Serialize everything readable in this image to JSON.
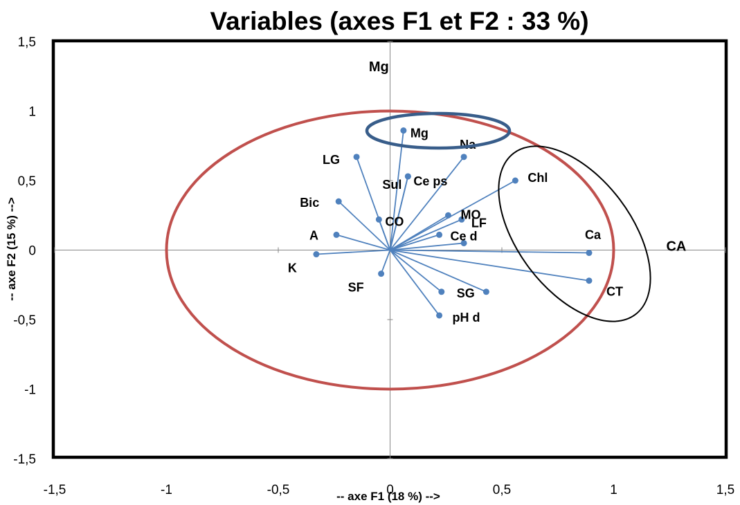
{
  "chart_data": {
    "type": "scatter",
    "title": "Variables (axes F1 et F2 : 33 %)",
    "xlabel": "-- axe F1 (18 %) -->",
    "ylabel": "-- axe F2 (15 %) -->",
    "xlim": [
      -1.5,
      1.5
    ],
    "ylim": [
      -1.5,
      1.5
    ],
    "x_ticks": [
      "-1,5",
      "-1",
      "-0,5",
      "0",
      "0,5",
      "1",
      "1,5"
    ],
    "y_ticks": [
      "-1,5",
      "-1",
      "-0,5",
      "0",
      "0,5",
      "1",
      "1,5"
    ],
    "x_tick_values": [
      -1.5,
      -1,
      -0.5,
      0,
      0.5,
      1,
      1.5
    ],
    "y_tick_values": [
      -1.5,
      -1,
      -0.5,
      0,
      0.5,
      1,
      1.5
    ],
    "correlation_circle_radius": 1,
    "points": [
      {
        "label": "Mg",
        "x": 0.06,
        "y": 0.86
      },
      {
        "label": "Na",
        "x": 0.33,
        "y": 0.67
      },
      {
        "label": "LG",
        "x": -0.15,
        "y": 0.67
      },
      {
        "label": "Sul",
        "x": 0.08,
        "y": 0.53
      },
      {
        "label": "Ce ps",
        "x": 0.08,
        "y": 0.53
      },
      {
        "label": "Chl",
        "x": 0.56,
        "y": 0.5
      },
      {
        "label": "Bic",
        "x": -0.23,
        "y": 0.35
      },
      {
        "label": "MO",
        "x": 0.26,
        "y": 0.25
      },
      {
        "label": "LF",
        "x": 0.32,
        "y": 0.22
      },
      {
        "label": "CO",
        "x": -0.05,
        "y": 0.22
      },
      {
        "label": "Ce d",
        "x": 0.22,
        "y": 0.11
      },
      {
        "label": "A",
        "x": -0.24,
        "y": 0.11
      },
      {
        "label": "Ca",
        "x": 0.89,
        "y": -0.02
      },
      {
        "label": "K",
        "x": -0.33,
        "y": -0.03
      },
      {
        "label": "CT",
        "x": 0.89,
        "y": -0.22
      },
      {
        "label": "SF",
        "x": -0.04,
        "y": -0.17
      },
      {
        "label": "SG",
        "x": 0.23,
        "y": -0.3
      },
      {
        "label": "SG",
        "x": 0.43,
        "y": -0.3
      },
      {
        "label": "pH d",
        "x": 0.22,
        "y": -0.47
      },
      {
        "label": "",
        "x": 0.33,
        "y": 0.05
      }
    ],
    "annotations": [
      {
        "text": "Mg",
        "x": -0.05,
        "y": 1.32
      },
      {
        "text": "CA",
        "x": 1.28,
        "y": 0.03
      }
    ],
    "colors": {
      "vector": "#4F81BD",
      "circle": "#C0504D",
      "highlight_mg_na": "#385D8A",
      "highlight_ca": "#000000"
    },
    "grid": false,
    "legend": "none"
  }
}
